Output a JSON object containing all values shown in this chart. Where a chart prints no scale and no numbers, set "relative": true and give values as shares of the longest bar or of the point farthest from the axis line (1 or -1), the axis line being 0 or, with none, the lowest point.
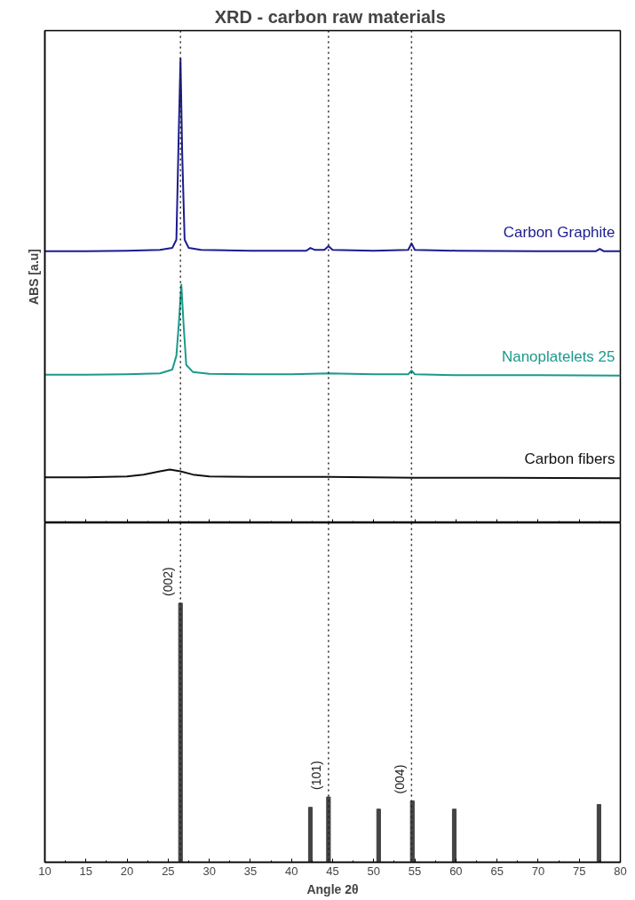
{
  "chart_data": [
    {
      "type": "line",
      "title": "XRD  - carbon raw materials",
      "ylabel": "ABS [a.u]",
      "relative": true,
      "tick_labels": false,
      "xlim": [
        10,
        80
      ],
      "xticks": [
        10,
        15,
        20,
        25,
        30,
        35,
        40,
        45,
        50,
        55,
        60,
        65,
        70,
        75,
        80
      ],
      "line_style": "solid",
      "marker": "none",
      "grid": false,
      "series": [
        {
          "name": "Carbon Graphite",
          "color": "#1b1b8f",
          "x": [
            10,
            15,
            20,
            24,
            25.5,
            26.0,
            26.3,
            26.5,
            26.7,
            27.0,
            27.5,
            29,
            35,
            41.8,
            42.3,
            42.8,
            44.0,
            44.5,
            45.0,
            50,
            54.2,
            54.6,
            55.0,
            60,
            70,
            77.0,
            77.5,
            78.0,
            80
          ],
          "values": [
            0.585,
            0.585,
            0.586,
            0.588,
            0.592,
            0.61,
            0.85,
            1.0,
            0.8,
            0.61,
            0.592,
            0.588,
            0.586,
            0.586,
            0.592,
            0.588,
            0.588,
            0.596,
            0.588,
            0.586,
            0.588,
            0.602,
            0.588,
            0.586,
            0.585,
            0.585,
            0.59,
            0.585,
            0.585
          ]
        },
        {
          "name": "Nanoplatelets 25",
          "color": "#1a9a8a",
          "x": [
            10,
            15,
            20,
            24,
            25.5,
            26.0,
            26.3,
            26.6,
            26.9,
            27.2,
            28,
            30,
            35,
            40,
            44.5,
            50,
            54.2,
            54.6,
            55.0,
            60,
            70,
            80
          ],
          "values": [
            0.319,
            0.319,
            0.32,
            0.322,
            0.33,
            0.36,
            0.43,
            0.513,
            0.42,
            0.34,
            0.325,
            0.321,
            0.32,
            0.32,
            0.322,
            0.32,
            0.32,
            0.328,
            0.32,
            0.318,
            0.318,
            0.317
          ]
        },
        {
          "name": "Carbon fibers",
          "color": "#111111",
          "x": [
            10,
            15,
            20,
            22,
            24,
            25.2,
            26.5,
            28,
            30,
            35,
            44.5,
            55,
            65,
            80
          ],
          "values": [
            0.098,
            0.098,
            0.1,
            0.104,
            0.111,
            0.115,
            0.111,
            0.104,
            0.1,
            0.099,
            0.099,
            0.097,
            0.097,
            0.096
          ]
        }
      ],
      "ref_lines": [
        {
          "axis": "x",
          "value": 26.5,
          "line_style": "dotted",
          "color": "#222222"
        },
        {
          "axis": "x",
          "value": 44.5,
          "line_style": "dotted",
          "color": "#222222"
        },
        {
          "axis": "x",
          "value": 54.6,
          "line_style": "dotted",
          "color": "#222222"
        }
      ]
    },
    {
      "type": "bar",
      "xlabel": "Angle 2θ",
      "relative": true,
      "tick_labels": "x",
      "xlim": [
        10,
        80
      ],
      "xticks": [
        10,
        15,
        20,
        25,
        30,
        35,
        40,
        45,
        50,
        55,
        60,
        65,
        70,
        75,
        80
      ],
      "grid": false,
      "x": [
        26.5,
        42.3,
        44.5,
        50.6,
        54.7,
        59.8,
        77.4
      ],
      "values": [
        1.0,
        0.212,
        0.252,
        0.205,
        0.237,
        0.205,
        0.223
      ],
      "color": "#444444",
      "annotations": [
        {
          "text": "(002)",
          "x": 26.5,
          "y": 1.0
        },
        {
          "text": "(101)",
          "x": 44.5,
          "y": 0.252
        },
        {
          "text": "(004)",
          "x": 54.7,
          "y": 0.237
        }
      ],
      "ref_lines": [
        {
          "axis": "x",
          "value": 26.5,
          "line_style": "dotted",
          "color": "#222222"
        },
        {
          "axis": "x",
          "value": 44.5,
          "line_style": "dotted",
          "color": "#222222"
        },
        {
          "axis": "x",
          "value": 54.6,
          "line_style": "dotted",
          "color": "#222222"
        }
      ]
    }
  ]
}
